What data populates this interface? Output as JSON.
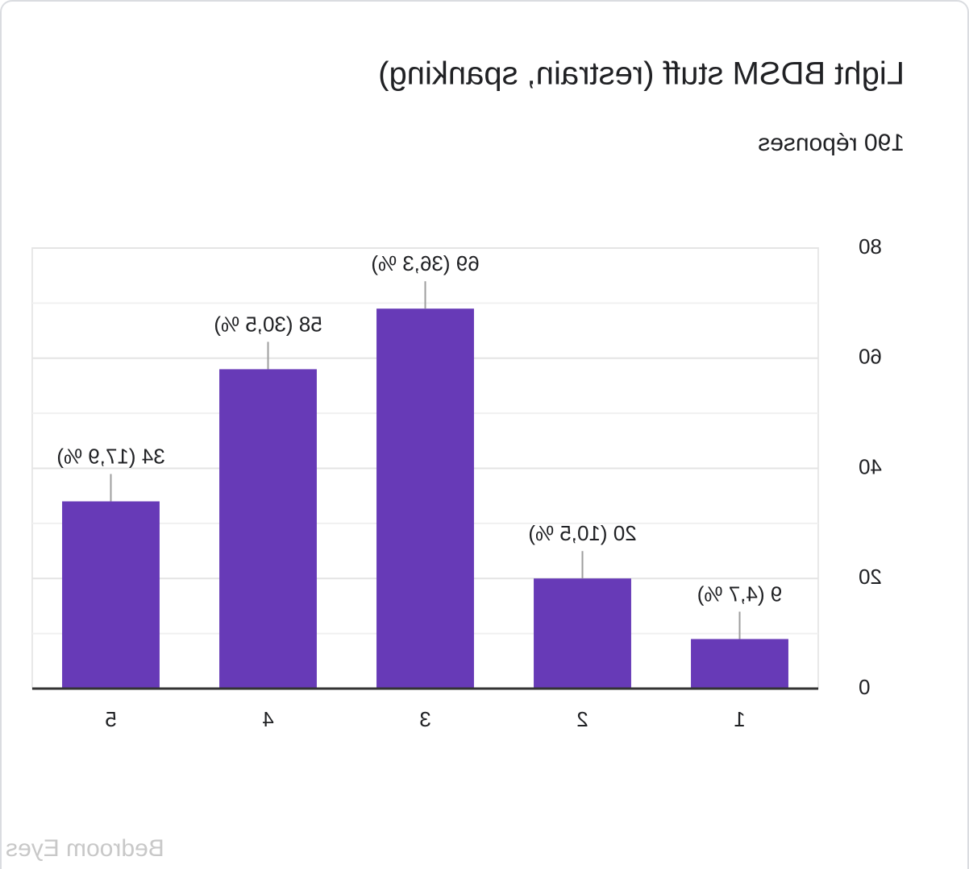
{
  "chart_data": {
    "type": "bar",
    "title": "Light BDSM stuff (restrain, spanking)",
    "subtitle": "190 réponses",
    "categories": [
      "1",
      "2",
      "3",
      "4",
      "5"
    ],
    "values": [
      9,
      20,
      69,
      58,
      34
    ],
    "value_labels": [
      "9 (4,7 %)",
      "20 (10,5 %)",
      "69 (36,3 %)",
      "58 (30,5 %)",
      "34 (17,9 %)"
    ],
    "color": "#673ab7",
    "ylim": [
      0,
      80
    ],
    "yticks": [
      0,
      20,
      40,
      60,
      80
    ],
    "grid": true,
    "watermark": "Bedroom Eyes"
  }
}
